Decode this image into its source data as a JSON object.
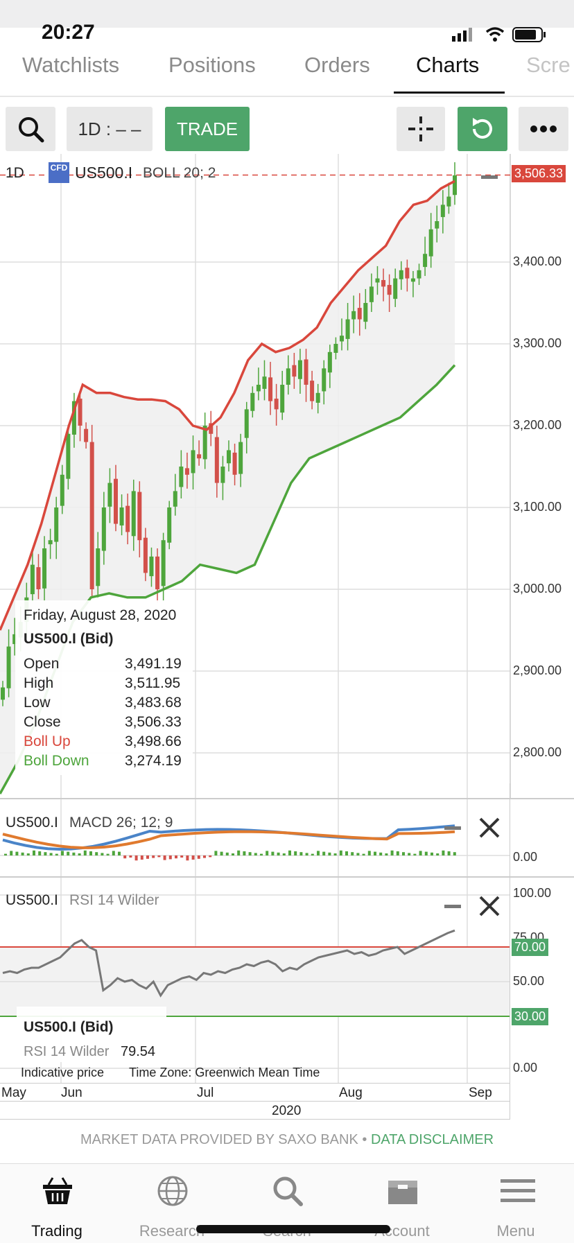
{
  "status_bar": {
    "time": "20:27"
  },
  "tabs": [
    {
      "label": "Watchlists",
      "active": false
    },
    {
      "label": "Positions",
      "active": false
    },
    {
      "label": "Orders",
      "active": false
    },
    {
      "label": "Charts",
      "active": true
    },
    {
      "label": "Scre",
      "active": false
    }
  ],
  "toolbar": {
    "timeframe_label": "1D : – –",
    "trade_label": "TRADE",
    "icons": [
      "search-icon",
      "crosshair-icon",
      "refresh-icon",
      "more-icon"
    ],
    "accent_color": "#4ea56a"
  },
  "main_chart": {
    "legend_period": "1D",
    "legend_badge": "CFD",
    "legend_symbol": "US500.I",
    "legend_indicator": "BOLL 20; 2",
    "last_price_tag": "3,506.33",
    "y_labels": [
      "3,400.00",
      "3,300.00",
      "3,200.00",
      "3,100.00",
      "3,000.00",
      "2,900.00",
      "2,800.00"
    ],
    "x_labels": [
      "May",
      "Jun",
      "Jul",
      "Aug",
      "Sep"
    ],
    "year_label": "2020",
    "colors": {
      "up": "#4ea53c",
      "down": "#d2504a",
      "boll_up": "#d9473c",
      "boll_down": "#4ea53c"
    }
  },
  "tooltip": {
    "date": "Friday, August 28, 2020",
    "instrument": "US500.I (Bid)",
    "rows": [
      {
        "label": "Open",
        "value": "3,491.19"
      },
      {
        "label": "High",
        "value": "3,511.95"
      },
      {
        "label": "Low",
        "value": "3,483.68"
      },
      {
        "label": "Close",
        "value": "3,506.33"
      },
      {
        "label": "Boll Up",
        "value": "3,498.66"
      },
      {
        "label": "Boll Down",
        "value": "3,274.19"
      }
    ]
  },
  "macd_panel": {
    "symbol": "US500.I",
    "indicator": "MACD 26; 12; 9",
    "y_label": "0.00"
  },
  "rsi_panel": {
    "symbol": "US500.I",
    "indicator": "RSI 14 Wilder",
    "y_labels": [
      "100.00",
      "75.00",
      "50.00",
      "0.00"
    ],
    "upper_tag": "70.00",
    "lower_tag": "30.00",
    "tooltip_instrument": "US500.I (Bid)",
    "tooltip_label": "RSI 14 Wilder",
    "tooltip_value": "79.54"
  },
  "chart_footer": {
    "indicative": "Indicative price",
    "timezone": "Time Zone: Greenwich Mean Time"
  },
  "disclaimer": {
    "provider": "MARKET DATA PROVIDED BY SAXO BANK",
    "separator": "•",
    "link": "DATA DISCLAIMER"
  },
  "bottom_nav": [
    {
      "label": "Trading",
      "icon": "basket-icon",
      "active": true
    },
    {
      "label": "Research",
      "icon": "globe-icon",
      "active": false
    },
    {
      "label": "Search",
      "icon": "search-icon",
      "active": false
    },
    {
      "label": "Account",
      "icon": "briefcase-icon",
      "active": false
    },
    {
      "label": "Menu",
      "icon": "menu-icon",
      "active": false
    }
  ],
  "chart_data": {
    "type": "candlestick",
    "symbol": "US500.I",
    "interval": "1D",
    "y_range": [
      2700,
      3530
    ],
    "last_candle": {
      "date": "2020-08-28",
      "open": 3491.19,
      "high": 3511.95,
      "low": 3483.68,
      "close": 3506.33,
      "boll_up": 3498.66,
      "boll_down": 3274.19
    },
    "closes": [
      2880,
      2930,
      2945,
      2960,
      2990,
      3030,
      3000,
      3050,
      3060,
      3100,
      3140,
      3190,
      3230,
      3200,
      3180,
      3000,
      3050,
      3100,
      3130,
      3080,
      3100,
      3070,
      3120,
      3060,
      3020,
      3040,
      3000,
      3060,
      3100,
      3120,
      3150,
      3140,
      3170,
      3160,
      3200,
      3190,
      3130,
      3150,
      3170,
      3140,
      3180,
      3220,
      3240,
      3250,
      3260,
      3230,
      3220,
      3250,
      3270,
      3260,
      3280,
      3250,
      3230,
      3240,
      3270,
      3290,
      3300,
      3310,
      3330,
      3340,
      3330,
      3350,
      3370,
      3380,
      3370,
      3360,
      3380,
      3390,
      3380,
      3380,
      3390,
      3410,
      3440,
      3450,
      3470,
      3480,
      3506
    ],
    "boll_up": [
      2950,
      2990,
      3030,
      3080,
      3140,
      3200,
      3250,
      3240,
      3240,
      3235,
      3232,
      3232,
      3230,
      3220,
      3200,
      3195,
      3210,
      3240,
      3280,
      3300,
      3290,
      3295,
      3305,
      3320,
      3350,
      3370,
      3390,
      3405,
      3420,
      3450,
      3470,
      3475,
      3490,
      3499
    ],
    "boll_down": [
      2750,
      2790,
      2840,
      2900,
      2960,
      2990,
      2995,
      2990,
      2990,
      3000,
      3010,
      3030,
      3025,
      3020,
      3030,
      3080,
      3130,
      3160,
      3170,
      3180,
      3190,
      3200,
      3210,
      3230,
      3250,
      3274
    ],
    "macd_range": [
      -1,
      1
    ],
    "rsi_range": [
      0,
      100
    ],
    "rsi_levels": [
      70,
      30
    ],
    "rsi_last": 79.54,
    "rsi": [
      55,
      56,
      55,
      57,
      58,
      58,
      60,
      62,
      64,
      68,
      72,
      74,
      70,
      68,
      45,
      48,
      52,
      50,
      51,
      48,
      46,
      50,
      42,
      48,
      50,
      52,
      53,
      51,
      55,
      54,
      56,
      55,
      57,
      58,
      60,
      59,
      61,
      62,
      60,
      56,
      58,
      57,
      60,
      62,
      64,
      65,
      66,
      67,
      68,
      66,
      67,
      65,
      66,
      68,
      69,
      70,
      66,
      68,
      70,
      72,
      74,
      76,
      78,
      79.54
    ]
  }
}
